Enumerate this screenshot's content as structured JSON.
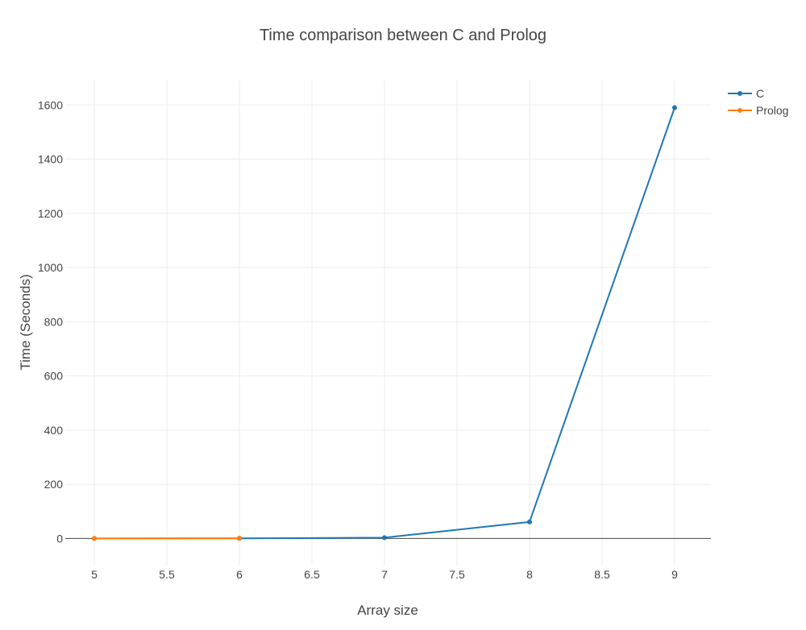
{
  "chart_data": {
    "type": "line",
    "title": "Time comparison between C and Prolog",
    "xlabel": "Array size",
    "ylabel": "Time (Seconds)",
    "xlim": [
      4.8,
      9.25
    ],
    "ylim": [
      -100,
      1690
    ],
    "xticks": [
      5,
      5.5,
      6,
      6.5,
      7,
      7.5,
      8,
      8.5,
      9
    ],
    "xtick_labels": [
      "5",
      "5.5",
      "6",
      "6.5",
      "7",
      "7.5",
      "8",
      "8.5",
      "9"
    ],
    "yticks": [
      0,
      200,
      400,
      600,
      800,
      1000,
      1200,
      1400,
      1600
    ],
    "ytick_labels": [
      "0",
      "200",
      "400",
      "600",
      "800",
      "1000",
      "1200",
      "1400",
      "1600"
    ],
    "grid": true,
    "legend_position": "top-right",
    "series": [
      {
        "name": "C",
        "color": "#1f77b4",
        "x": [
          5,
          6,
          7,
          8,
          9
        ],
        "y": [
          0.05,
          0.4,
          3,
          61,
          1590
        ]
      },
      {
        "name": "Prolog",
        "color": "#ff7f0e",
        "x": [
          5,
          6
        ],
        "y": [
          0.1,
          1
        ]
      }
    ]
  }
}
